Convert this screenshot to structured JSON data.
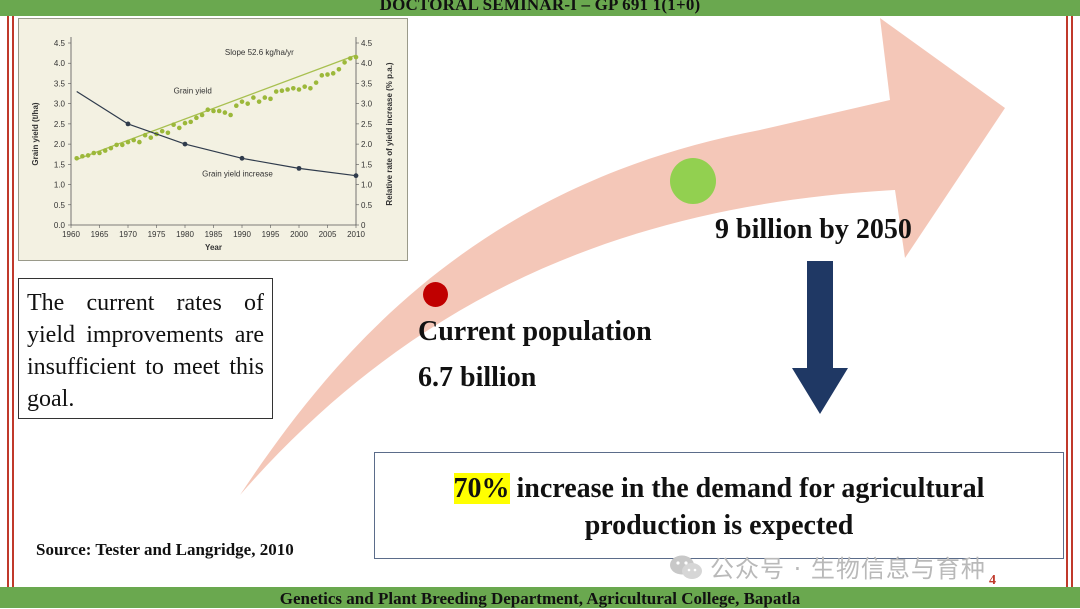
{
  "header": {
    "title": "DOCTORAL SEMINAR-I – GP 691 1(1+0)"
  },
  "footer": {
    "text": "Genetics and Plant Breeding Department, Agricultural College, Bapatla",
    "page_number": "4"
  },
  "note": {
    "text": "The current rates of yield improvements are insufficient to meet this goal."
  },
  "source": {
    "text": "Source: Tester and Langridge, 2010"
  },
  "population": {
    "current_label": "Current population",
    "current_value": "6.7 billion",
    "future_label": "9 billion by 2050"
  },
  "demand": {
    "highlight": "70%",
    "line1_rest": " increase in the demand for agricultural",
    "line2": "production is expected"
  },
  "watermark": {
    "text": "公众号 · 生物信息与育种"
  },
  "colors": {
    "green": "#6aa84f",
    "red_dot": "#c00000",
    "green_dot": "#92d050",
    "arrow_down": "#1f3864",
    "arrow_fill": "#f4c7b8"
  },
  "chart_data": {
    "type": "scatter",
    "xlabel": "Year",
    "ylabel": "Grain yield (t/ha)",
    "y2label": "Relative rate of yield increase (% p.a.)",
    "xlim": [
      1960,
      2010
    ],
    "ylim": [
      0,
      4.5
    ],
    "x_ticks": [
      "1960",
      "1965",
      "1970",
      "1975",
      "1980",
      "1985",
      "1990",
      "1995",
      "2000",
      "2005",
      "2010"
    ],
    "y_ticks": [
      "0.0",
      "0.5",
      "1.0",
      "1.5",
      "2.0",
      "2.5",
      "3.0",
      "3.5",
      "4.0",
      "4.5"
    ],
    "y2_ticks": [
      "0",
      "0.5",
      "1.0",
      "1.5",
      "2.0",
      "2.5",
      "3.0",
      "3.5",
      "4.0",
      "4.5"
    ],
    "annotations": {
      "slope": "Slope 52.6 kg/ha/yr",
      "grain_yield": "Grain yield",
      "yield_increase": "Grain yield increase"
    },
    "series": [
      {
        "name": "Grain yield",
        "kind": "scatter+trend",
        "x": [
          1961,
          1962,
          1963,
          1964,
          1965,
          1966,
          1967,
          1968,
          1969,
          1970,
          1971,
          1972,
          1973,
          1974,
          1975,
          1976,
          1977,
          1978,
          1979,
          1980,
          1981,
          1982,
          1983,
          1984,
          1985,
          1986,
          1987,
          1988,
          1989,
          1990,
          1991,
          1992,
          1993,
          1994,
          1995,
          1996,
          1997,
          1998,
          1999,
          2000,
          2001,
          2002,
          2003,
          2004,
          2005,
          2006,
          2007,
          2008,
          2009,
          2010
        ],
        "values": [
          1.65,
          1.7,
          1.72,
          1.78,
          1.78,
          1.84,
          1.9,
          1.98,
          1.98,
          2.05,
          2.1,
          2.05,
          2.22,
          2.16,
          2.25,
          2.32,
          2.28,
          2.48,
          2.4,
          2.52,
          2.55,
          2.65,
          2.72,
          2.85,
          2.82,
          2.82,
          2.78,
          2.72,
          2.95,
          3.05,
          3.0,
          3.15,
          3.05,
          3.15,
          3.12,
          3.3,
          3.32,
          3.35,
          3.38,
          3.35,
          3.42,
          3.38,
          3.52,
          3.7,
          3.72,
          3.75,
          3.85,
          4.02,
          4.12,
          4.15
        ],
        "trend": [
          [
            1961,
            1.62
          ],
          [
            2010,
            4.2
          ]
        ]
      },
      {
        "name": "Grain yield increase",
        "kind": "curve",
        "x": [
          1961,
          1970,
          1980,
          1990,
          2000,
          2010
        ],
        "values": [
          3.3,
          2.5,
          2.0,
          1.65,
          1.4,
          1.22
        ]
      }
    ]
  }
}
